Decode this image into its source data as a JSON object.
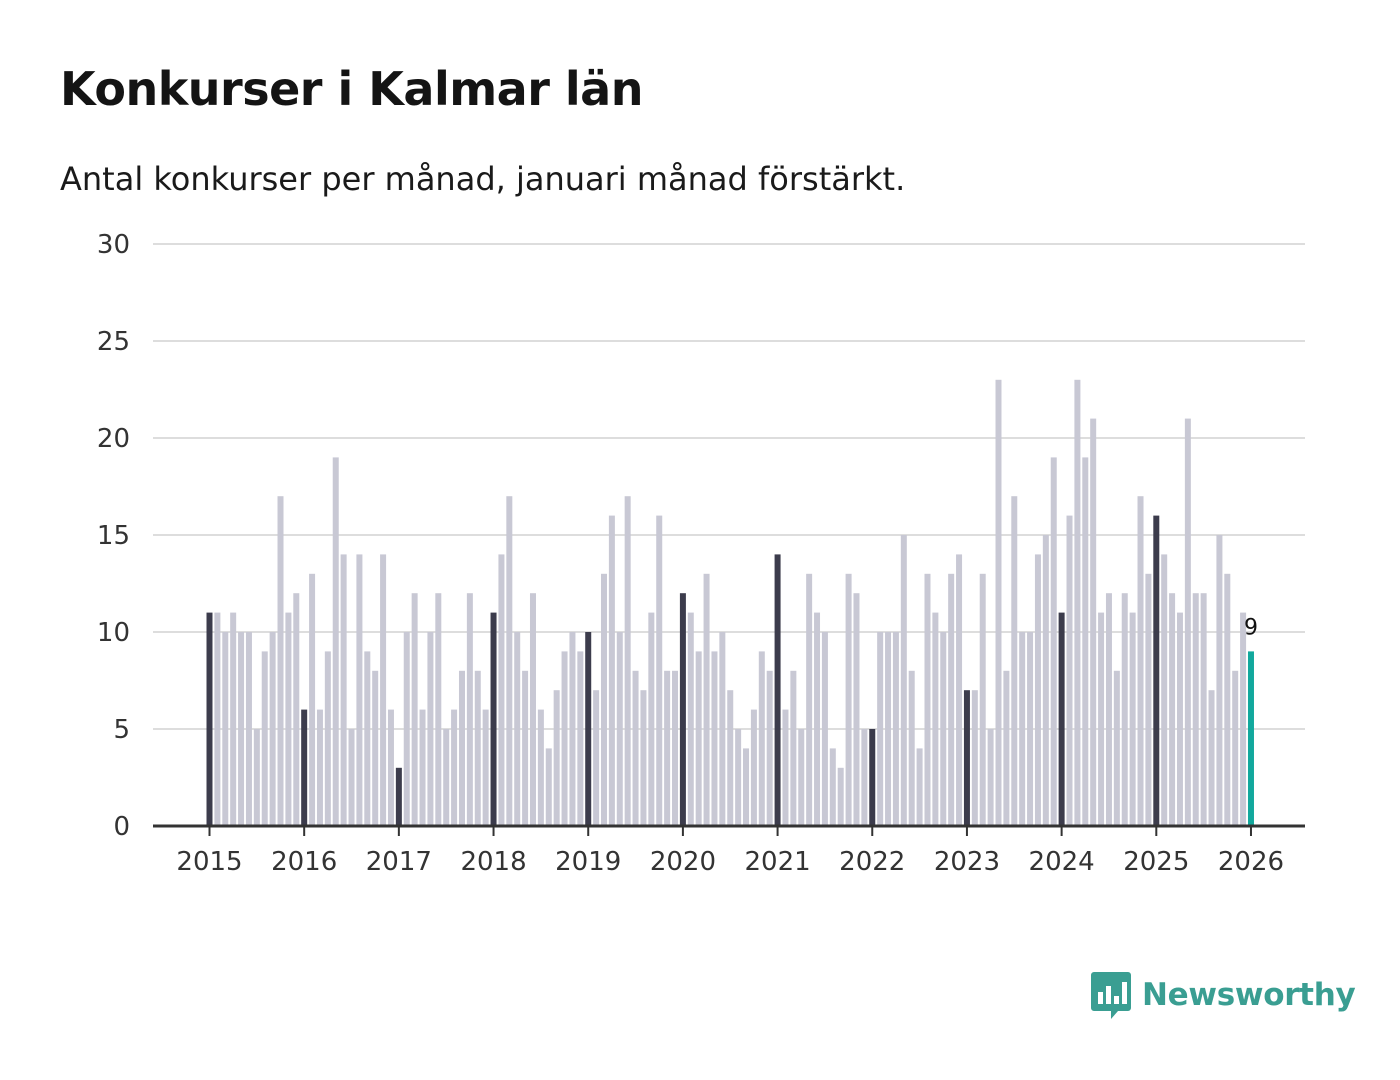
{
  "title": "Konkurser i Kalmar län",
  "subtitle": "Antal konkurser per månad, januari månad förstärkt.",
  "brand": {
    "name": "Newsworthy",
    "color": "#3a9e92",
    "icon": "newsworthy-logo-icon"
  },
  "colors": {
    "bar": "#c8c8d4",
    "january_bar": "#3c3c4c",
    "latest_bar": "#12a89d",
    "grid": "#dddddd",
    "axis": "#333333"
  },
  "chart_data": {
    "type": "bar",
    "title": "Konkurser i Kalmar län",
    "subtitle": "Antal konkurser per månad, januari månad förstärkt.",
    "xlabel": "",
    "ylabel": "",
    "ylim": [
      0,
      30
    ],
    "yticks": [
      0,
      5,
      10,
      15,
      20,
      25,
      30
    ],
    "grid": true,
    "start": "2015-01",
    "end": "2026-01",
    "xtick_labels": [
      "2015",
      "2016",
      "2017",
      "2018",
      "2019",
      "2020",
      "2021",
      "2022",
      "2023",
      "2024",
      "2025",
      "2026"
    ],
    "highlight": "januari",
    "latest_label": "9",
    "values": [
      11,
      11,
      10,
      11,
      10,
      10,
      5,
      9,
      10,
      17,
      11,
      12,
      6,
      13,
      6,
      9,
      19,
      14,
      5,
      14,
      9,
      8,
      14,
      6,
      3,
      10,
      12,
      6,
      10,
      12,
      5,
      6,
      8,
      12,
      8,
      6,
      11,
      14,
      17,
      10,
      8,
      12,
      6,
      4,
      7,
      9,
      10,
      9,
      10,
      7,
      13,
      16,
      10,
      17,
      8,
      7,
      11,
      16,
      8,
      8,
      12,
      11,
      9,
      13,
      9,
      10,
      7,
      5,
      4,
      6,
      9,
      8,
      14,
      6,
      8,
      5,
      13,
      11,
      10,
      4,
      3,
      13,
      12,
      5,
      5,
      10,
      10,
      10,
      15,
      8,
      4,
      13,
      11,
      10,
      13,
      14,
      7,
      7,
      13,
      5,
      23,
      8,
      17,
      10,
      10,
      14,
      15,
      19,
      11,
      16,
      23,
      19,
      21,
      11,
      12,
      8,
      12,
      11,
      17,
      13,
      16,
      14,
      12,
      11,
      21,
      12,
      12,
      7,
      15,
      13,
      8,
      11,
      9
    ]
  }
}
